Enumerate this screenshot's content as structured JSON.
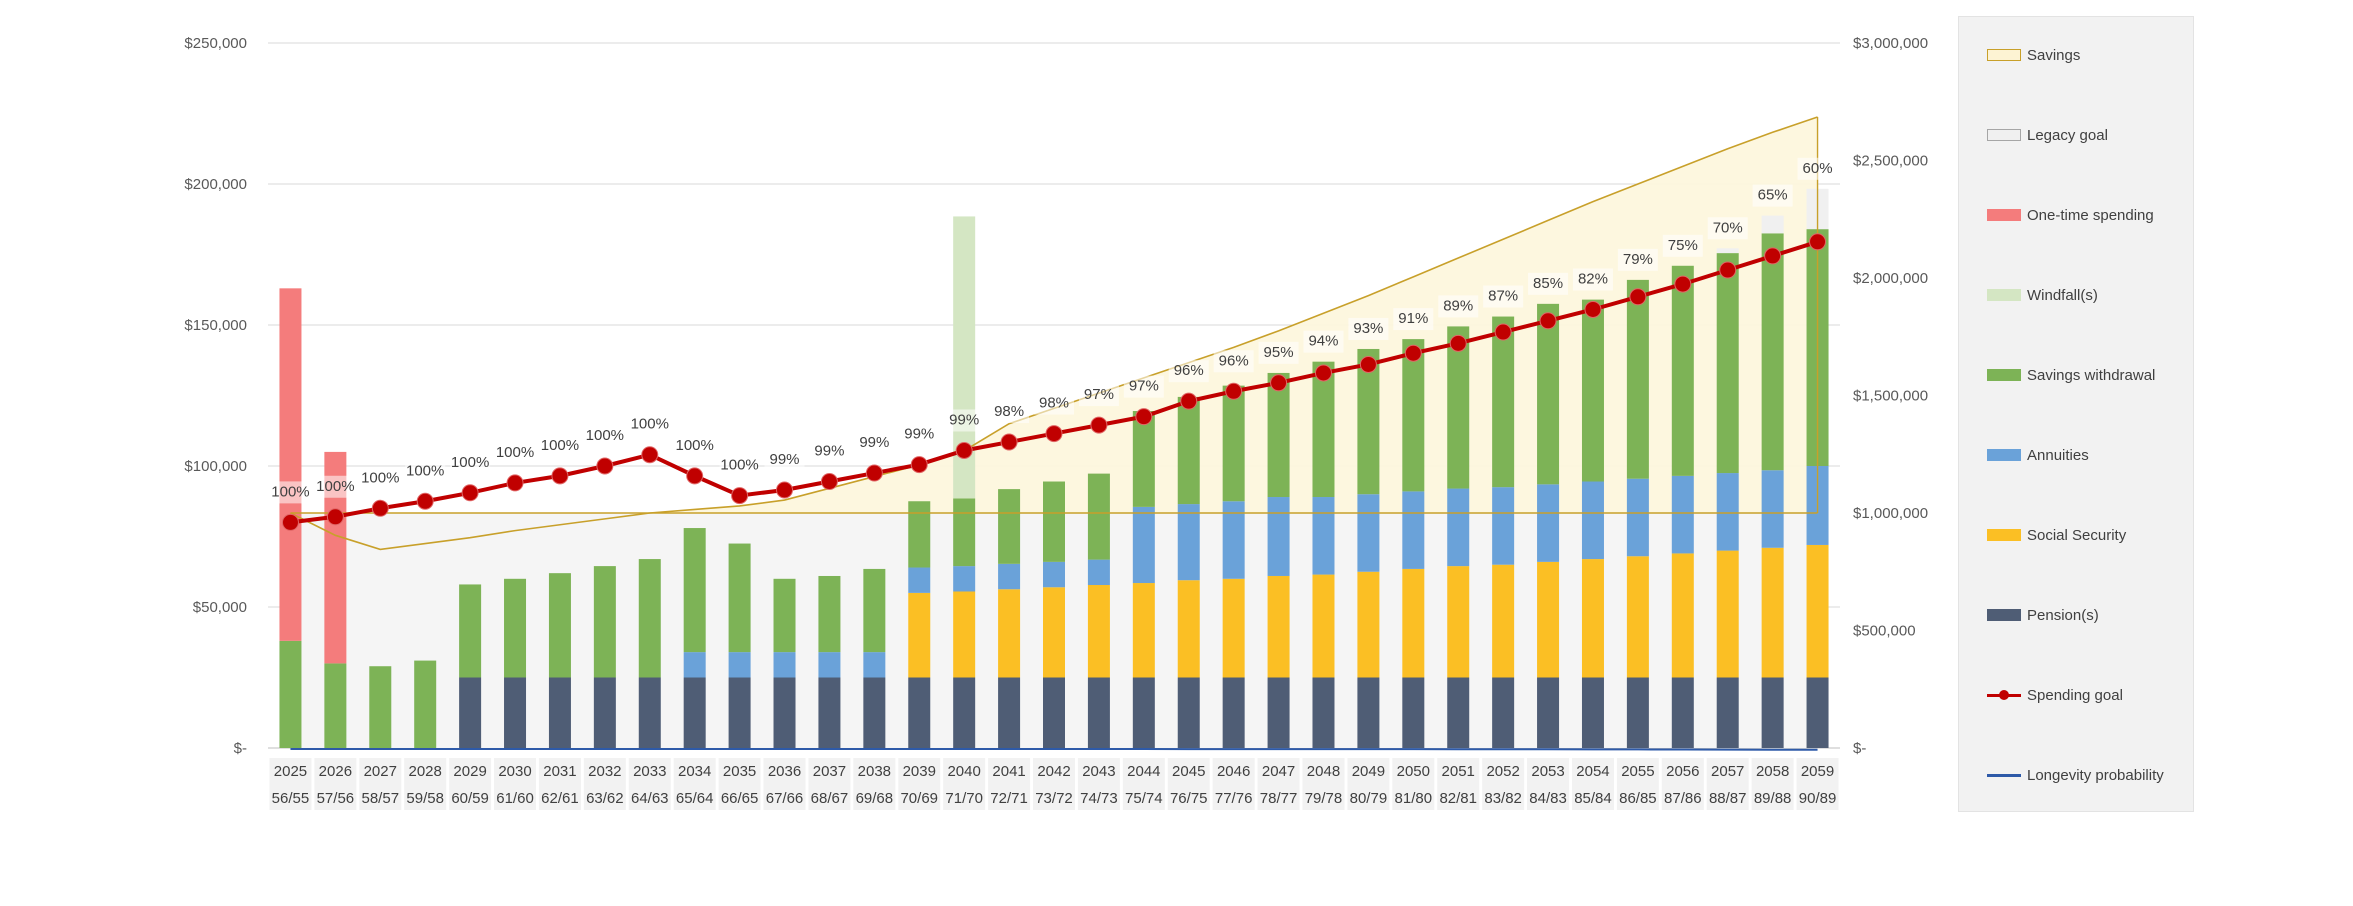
{
  "chart_data": {
    "type": "bar",
    "title": "",
    "left_axis": {
      "min": 0,
      "max": 250000,
      "ticks": [
        {
          "value": 0,
          "label": "$-"
        },
        {
          "value": 50000,
          "label": "$50,000"
        },
        {
          "value": 100000,
          "label": "$100,000"
        },
        {
          "value": 150000,
          "label": "$150,000"
        },
        {
          "value": 200000,
          "label": "$200,000"
        },
        {
          "value": 250000,
          "label": "$250,000"
        }
      ]
    },
    "right_axis": {
      "min": 0,
      "max": 3000000,
      "ticks": [
        {
          "value": 0,
          "label": "$-"
        },
        {
          "value": 500000,
          "label": "$500,000"
        },
        {
          "value": 1000000,
          "label": "$1,000,000"
        },
        {
          "value": 1500000,
          "label": "$1,500,000"
        },
        {
          "value": 2000000,
          "label": "$2,000,000"
        },
        {
          "value": 2500000,
          "label": "$2,500,000"
        },
        {
          "value": 3000000,
          "label": "$3,000,000"
        }
      ]
    },
    "categories": [
      "2025",
      "2026",
      "2027",
      "2028",
      "2029",
      "2030",
      "2031",
      "2032",
      "2033",
      "2034",
      "2035",
      "2036",
      "2037",
      "2038",
      "2039",
      "2040",
      "2041",
      "2042",
      "2043",
      "2044",
      "2045",
      "2046",
      "2047",
      "2048",
      "2049",
      "2050",
      "2051",
      "2052",
      "2053",
      "2054",
      "2055",
      "2056",
      "2057",
      "2058",
      "2059"
    ],
    "ages": [
      "56/55",
      "57/56",
      "58/57",
      "59/58",
      "60/59",
      "61/60",
      "62/61",
      "63/62",
      "64/63",
      "65/64",
      "66/65",
      "67/66",
      "68/67",
      "69/68",
      "70/69",
      "71/70",
      "72/71",
      "73/72",
      "74/73",
      "75/74",
      "76/75",
      "77/76",
      "78/77",
      "79/78",
      "80/79",
      "81/80",
      "82/81",
      "83/82",
      "84/83",
      "85/84",
      "86/85",
      "87/86",
      "88/87",
      "89/88",
      "90/89"
    ],
    "stack_series": [
      {
        "name": "Pension(s)",
        "color": "#4f5d75",
        "values": [
          0,
          0,
          0,
          0,
          25000,
          25000,
          25000,
          25000,
          25000,
          25000,
          25000,
          25000,
          25000,
          25000,
          25000,
          25000,
          25000,
          25000,
          25000,
          25000,
          25000,
          25000,
          25000,
          25000,
          25000,
          25000,
          25000,
          25000,
          25000,
          25000,
          25000,
          25000,
          25000,
          25000,
          25000
        ]
      },
      {
        "name": "Social Security",
        "color": "#fbbf24",
        "values": [
          0,
          0,
          0,
          0,
          0,
          0,
          0,
          0,
          0,
          0,
          0,
          0,
          0,
          0,
          30000,
          30500,
          31300,
          32000,
          32800,
          33500,
          34500,
          35000,
          36000,
          36500,
          37500,
          38500,
          39500,
          40000,
          41000,
          42000,
          43000,
          44000,
          45000,
          46000,
          47000
        ]
      },
      {
        "name": "Annuities",
        "color": "#6aa2d9",
        "values": [
          0,
          0,
          0,
          0,
          0,
          0,
          0,
          0,
          0,
          9000,
          9000,
          9000,
          9000,
          9000,
          9000,
          9000,
          9000,
          9000,
          9000,
          27000,
          27000,
          27500,
          28000,
          27500,
          27500,
          27500,
          27500,
          27500,
          27500,
          27500,
          27500,
          27500,
          27500,
          27500,
          28000
        ]
      },
      {
        "name": "Savings withdrawal",
        "color": "#7db356",
        "values": [
          38000,
          30000,
          29000,
          31000,
          33000,
          35000,
          37000,
          39500,
          42000,
          44000,
          38500,
          26000,
          27000,
          29500,
          23500,
          24000,
          26500,
          28500,
          30500,
          34000,
          38000,
          41000,
          44000,
          48000,
          51500,
          54000,
          57500,
          60500,
          64000,
          64500,
          70500,
          74500,
          78000,
          84000,
          84000
        ]
      },
      {
        "name": "Windfall(s)",
        "color": "#d4e6c3",
        "values": [
          0,
          0,
          0,
          0,
          0,
          0,
          0,
          0,
          0,
          0,
          0,
          0,
          0,
          0,
          0,
          100000,
          0,
          0,
          0,
          0,
          0,
          0,
          0,
          0,
          0,
          0,
          0,
          0,
          0,
          0,
          0,
          0,
          0,
          0,
          0
        ]
      },
      {
        "name": "One-time spending",
        "color": "#f47c7c",
        "values": [
          125000,
          75000,
          0,
          0,
          0,
          0,
          0,
          0,
          0,
          0,
          0,
          0,
          0,
          0,
          0,
          0,
          0,
          0,
          0,
          0,
          0,
          0,
          0,
          0,
          0,
          0,
          0,
          0,
          0,
          0,
          0,
          0,
          0,
          0,
          0
        ]
      },
      {
        "name": "Legacy goal",
        "color": "#f0f0f0",
        "values": [
          0,
          0,
          0,
          0,
          0,
          0,
          0,
          0,
          0,
          0,
          0,
          0,
          0,
          0,
          0,
          0,
          0,
          0,
          0,
          0,
          0,
          0,
          0,
          0,
          0,
          0,
          0,
          0,
          0,
          0,
          0,
          0,
          1700,
          6300,
          14300
        ]
      }
    ],
    "spending_goal": {
      "name": "Spending goal",
      "color": "#c00000",
      "values": [
        80000,
        82000,
        85000,
        87500,
        90500,
        94000,
        96500,
        100000,
        104000,
        96500,
        89500,
        91500,
        94500,
        97500,
        100500,
        105500,
        108500,
        111500,
        114500,
        117500,
        123000,
        126500,
        129500,
        133000,
        136000,
        140000,
        143500,
        147500,
        151500,
        155500,
        160000,
        164500,
        169500,
        174500,
        179500
      ]
    },
    "longevity_probability": {
      "name": "Longevity probability",
      "color": "#2e5aa8",
      "values": [
        100,
        100,
        100,
        100,
        100,
        100,
        100,
        100,
        100,
        100,
        100,
        99,
        99,
        99,
        99,
        99,
        98,
        98,
        97,
        97,
        96,
        96,
        95,
        94,
        93,
        91,
        89,
        87,
        85,
        82,
        79,
        75,
        70,
        65,
        60
      ],
      "labels": [
        "100%",
        "100%",
        "100%",
        "100%",
        "100%",
        "100%",
        "100%",
        "100%",
        "100%",
        "100%",
        "100%",
        "99%",
        "99%",
        "99%",
        "99%",
        "99%",
        "98%",
        "98%",
        "97%",
        "97%",
        "96%",
        "96%",
        "95%",
        "94%",
        "93%",
        "91%",
        "89%",
        "87%",
        "85%",
        "82%",
        "79%",
        "75%",
        "70%",
        "65%",
        "60%"
      ]
    },
    "savings": {
      "name": "Savings",
      "color": "#c8a02a",
      "values": [
        1000000,
        905000,
        845000,
        870000,
        895000,
        925000,
        950000,
        975000,
        1000000,
        1015000,
        1030000,
        1055000,
        1105000,
        1155000,
        1205000,
        1265000,
        1380000,
        1445000,
        1510000,
        1575000,
        1640000,
        1705000,
        1775000,
        1850000,
        1925000,
        2005000,
        2085000,
        2165000,
        2245000,
        2325000,
        2400000,
        2475000,
        2550000,
        2620000,
        2685000
      ],
      "baseline": 1000000
    }
  },
  "legend": {
    "items": [
      {
        "label": "Savings",
        "kind": "box",
        "color": "#fdf3d3",
        "border": "#c8a02a"
      },
      {
        "label": "Legacy goal",
        "kind": "box",
        "color": "#f0f0f0",
        "border": "#a6a6a6"
      },
      {
        "label": "One-time spending",
        "kind": "box",
        "color": "#f47c7c",
        "border": "#f47c7c"
      },
      {
        "label": "Windfall(s)",
        "kind": "box",
        "color": "#d4e6c3",
        "border": "#d4e6c3"
      },
      {
        "label": "Savings withdrawal",
        "kind": "box",
        "color": "#7db356",
        "border": "#7db356"
      },
      {
        "label": "Annuities",
        "kind": "box",
        "color": "#6aa2d9",
        "border": "#6aa2d9"
      },
      {
        "label": "Social Security",
        "kind": "box",
        "color": "#fbbf24",
        "border": "#fbbf24"
      },
      {
        "label": "Pension(s)",
        "kind": "box",
        "color": "#4f5d75",
        "border": "#4f5d75"
      },
      {
        "label": "Spending goal",
        "kind": "linedot",
        "color": "#c00000",
        "border": "#c00000"
      },
      {
        "label": "Longevity probability",
        "kind": "line",
        "color": "#2e5aa8",
        "border": "#2e5aa8"
      }
    ]
  }
}
